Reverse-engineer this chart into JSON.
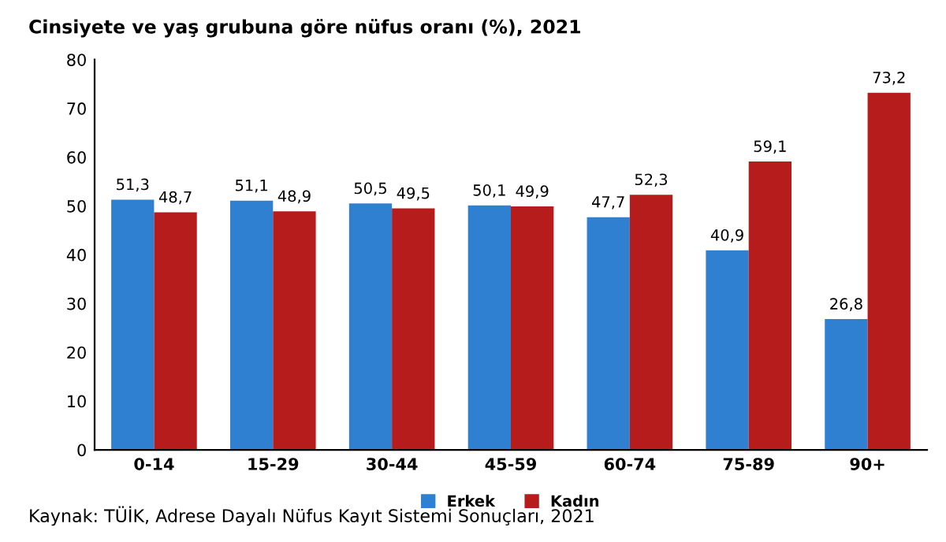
{
  "chart_data": {
    "type": "bar",
    "title": "Cinsiyete ve yaş grubuna göre nüfus oranı (%), 2021",
    "categories": [
      "0-14",
      "15-29",
      "30-44",
      "45-59",
      "60-74",
      "75-89",
      "90+"
    ],
    "series": [
      {
        "name": "Erkek",
        "color": "#2f80d0",
        "values": [
          51.3,
          51.1,
          50.5,
          50.1,
          47.7,
          40.9,
          26.8
        ],
        "value_labels": [
          "51,3",
          "51,1",
          "50,5",
          "50,1",
          "47,7",
          "40,9",
          "26,8"
        ]
      },
      {
        "name": "Kadın",
        "color": "#b71c1c",
        "values": [
          48.7,
          48.9,
          49.5,
          49.9,
          52.3,
          59.1,
          73.2
        ],
        "value_labels": [
          "48,7",
          "48,9",
          "49,5",
          "49,9",
          "52,3",
          "59,1",
          "73,2"
        ]
      }
    ],
    "ylim": [
      0,
      80
    ],
    "yticks": [
      0,
      10,
      20,
      30,
      40,
      50,
      60,
      70,
      80
    ],
    "grid": false,
    "legend": "bottom",
    "annotations": [
      "Kaynak: TÜİK, Adrese Dayalı Nüfus Kayıt Sistemi Sonuçları, 2021"
    ]
  }
}
